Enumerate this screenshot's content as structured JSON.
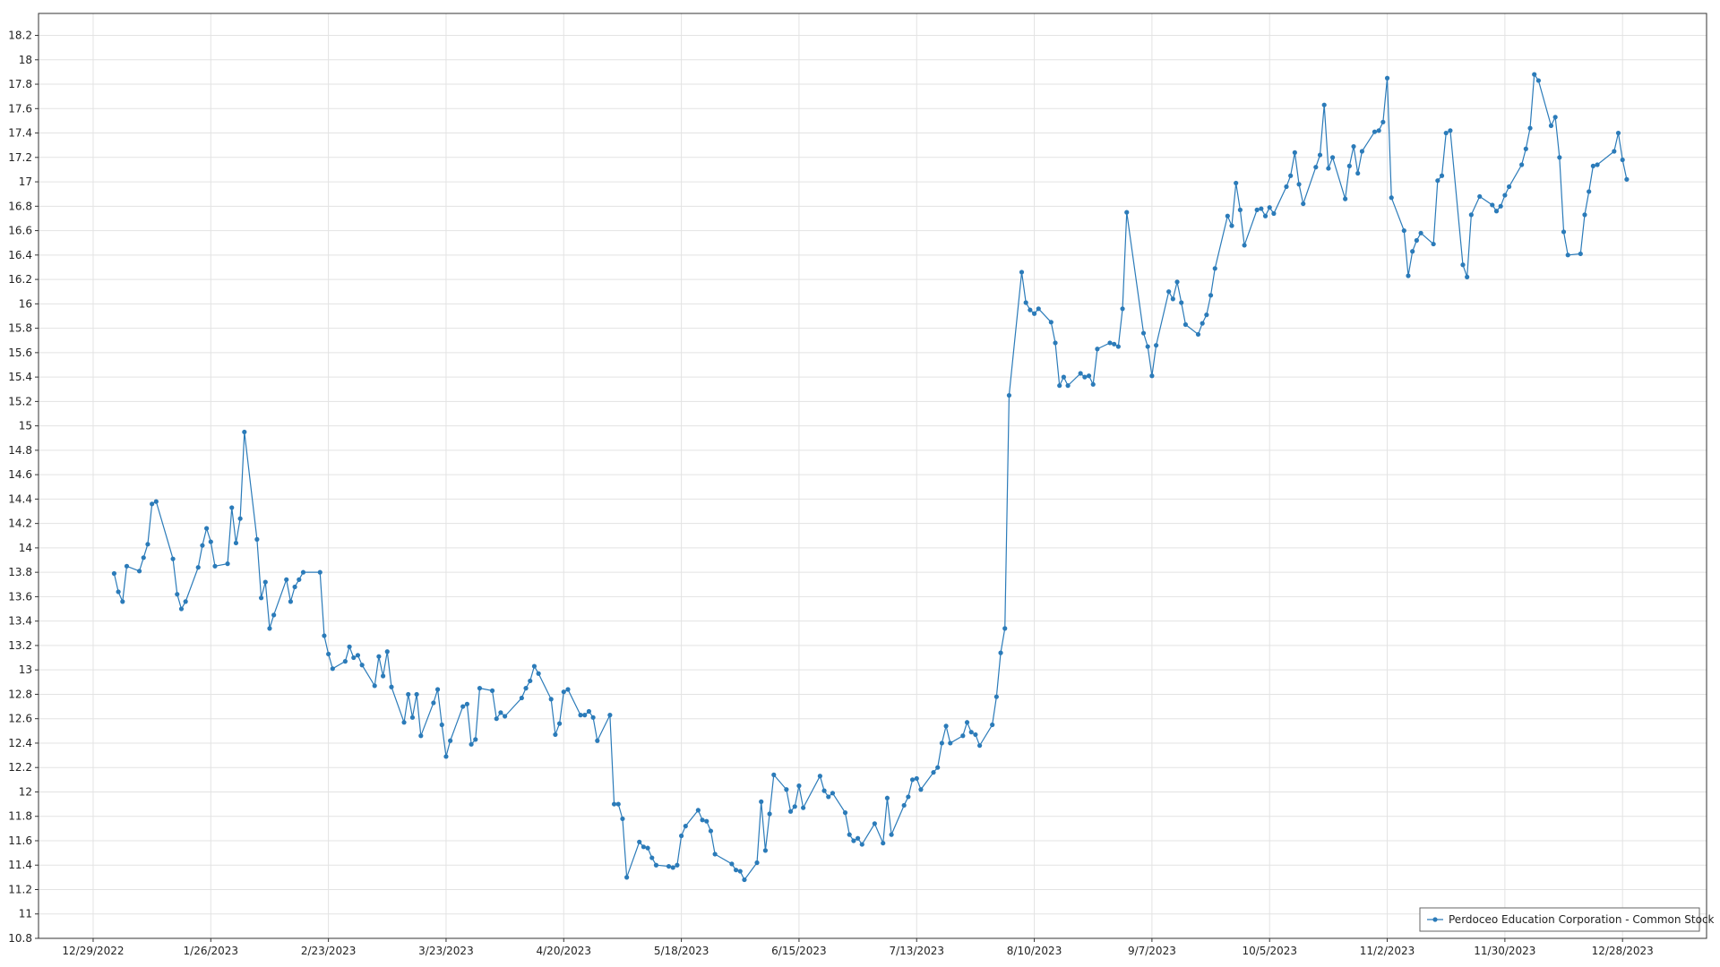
{
  "chart_data": {
    "type": "line",
    "x": [
      "1/3/2023",
      "1/4/2023",
      "1/5/2023",
      "1/6/2023",
      "1/9/2023",
      "1/10/2023",
      "1/11/2023",
      "1/12/2023",
      "1/13/2023",
      "1/17/2023",
      "1/18/2023",
      "1/19/2023",
      "1/20/2023",
      "1/23/2023",
      "1/24/2023",
      "1/25/2023",
      "1/26/2023",
      "1/27/2023",
      "1/30/2023",
      "1/31/2023",
      "2/1/2023",
      "2/2/2023",
      "2/3/2023",
      "2/6/2023",
      "2/7/2023",
      "2/8/2023",
      "2/9/2023",
      "2/10/2023",
      "2/13/2023",
      "2/14/2023",
      "2/15/2023",
      "2/16/2023",
      "2/17/2023",
      "2/21/2023",
      "2/22/2023",
      "2/23/2023",
      "2/24/2023",
      "2/27/2023",
      "2/28/2023",
      "3/1/2023",
      "3/2/2023",
      "3/3/2023",
      "3/6/2023",
      "3/7/2023",
      "3/8/2023",
      "3/9/2023",
      "3/10/2023",
      "3/13/2023",
      "3/14/2023",
      "3/15/2023",
      "3/16/2023",
      "3/17/2023",
      "3/20/2023",
      "3/21/2023",
      "3/22/2023",
      "3/23/2023",
      "3/24/2023",
      "3/27/2023",
      "3/28/2023",
      "3/29/2023",
      "3/30/2023",
      "3/31/2023",
      "4/3/2023",
      "4/4/2023",
      "4/5/2023",
      "4/6/2023",
      "4/10/2023",
      "4/11/2023",
      "4/12/2023",
      "4/13/2023",
      "4/14/2023",
      "4/17/2023",
      "4/18/2023",
      "4/19/2023",
      "4/20/2023",
      "4/21/2023",
      "4/24/2023",
      "4/25/2023",
      "4/26/2023",
      "4/27/2023",
      "4/28/2023",
      "5/1/2023",
      "5/2/2023",
      "5/3/2023",
      "5/4/2023",
      "5/5/2023",
      "5/8/2023",
      "5/9/2023",
      "5/10/2023",
      "5/11/2023",
      "5/12/2023",
      "5/15/2023",
      "5/16/2023",
      "5/17/2023",
      "5/18/2023",
      "5/19/2023",
      "5/22/2023",
      "5/23/2023",
      "5/24/2023",
      "5/25/2023",
      "5/26/2023",
      "5/30/2023",
      "5/31/2023",
      "6/1/2023",
      "6/2/2023",
      "6/5/2023",
      "6/6/2023",
      "6/7/2023",
      "6/8/2023",
      "6/9/2023",
      "6/12/2023",
      "6/13/2023",
      "6/14/2023",
      "6/15/2023",
      "6/16/2023",
      "6/20/2023",
      "6/21/2023",
      "6/22/2023",
      "6/23/2023",
      "6/26/2023",
      "6/27/2023",
      "6/28/2023",
      "6/29/2023",
      "6/30/2023",
      "7/3/2023",
      "7/5/2023",
      "7/6/2023",
      "7/7/2023",
      "7/10/2023",
      "7/11/2023",
      "7/12/2023",
      "7/13/2023",
      "7/14/2023",
      "7/17/2023",
      "7/18/2023",
      "7/19/2023",
      "7/20/2023",
      "7/21/2023",
      "7/24/2023",
      "7/25/2023",
      "7/26/2023",
      "7/27/2023",
      "7/28/2023",
      "7/31/2023",
      "8/1/2023",
      "8/2/2023",
      "8/3/2023",
      "8/4/2023",
      "8/7/2023",
      "8/8/2023",
      "8/9/2023",
      "8/10/2023",
      "8/11/2023",
      "8/14/2023",
      "8/15/2023",
      "8/16/2023",
      "8/17/2023",
      "8/18/2023",
      "8/21/2023",
      "8/22/2023",
      "8/23/2023",
      "8/24/2023",
      "8/25/2023",
      "8/28/2023",
      "8/29/2023",
      "8/30/2023",
      "8/31/2023",
      "9/1/2023",
      "9/5/2023",
      "9/6/2023",
      "9/7/2023",
      "9/8/2023",
      "9/11/2023",
      "9/12/2023",
      "9/13/2023",
      "9/14/2023",
      "9/15/2023",
      "9/18/2023",
      "9/19/2023",
      "9/20/2023",
      "9/21/2023",
      "9/22/2023",
      "9/25/2023",
      "9/26/2023",
      "9/27/2023",
      "9/28/2023",
      "9/29/2023",
      "10/2/2023",
      "10/3/2023",
      "10/4/2023",
      "10/5/2023",
      "10/6/2023",
      "10/9/2023",
      "10/10/2023",
      "10/11/2023",
      "10/12/2023",
      "10/13/2023",
      "10/16/2023",
      "10/17/2023",
      "10/18/2023",
      "10/19/2023",
      "10/20/2023",
      "10/23/2023",
      "10/24/2023",
      "10/25/2023",
      "10/26/2023",
      "10/27/2023",
      "10/30/2023",
      "10/31/2023",
      "11/1/2023",
      "11/2/2023",
      "11/3/2023",
      "11/6/2023",
      "11/7/2023",
      "11/8/2023",
      "11/9/2023",
      "11/10/2023",
      "11/13/2023",
      "11/14/2023",
      "11/15/2023",
      "11/16/2023",
      "11/17/2023",
      "11/20/2023",
      "11/21/2023",
      "11/22/2023",
      "11/24/2023",
      "11/27/2023",
      "11/28/2023",
      "11/29/2023",
      "11/30/2023",
      "12/1/2023",
      "12/4/2023",
      "12/5/2023",
      "12/6/2023",
      "12/7/2023",
      "12/8/2023",
      "12/11/2023",
      "12/12/2023",
      "12/13/2023",
      "12/14/2023",
      "12/15/2023",
      "12/18/2023",
      "12/19/2023",
      "12/20/2023",
      "12/21/2023",
      "12/22/2023",
      "12/26/2023",
      "12/27/2023",
      "12/28/2023",
      "12/29/2023"
    ],
    "series": [
      {
        "name": "Perdoceo Education Corporation - Common Stock",
        "color": "#2b7bb9",
        "values": [
          13.79,
          13.64,
          13.56,
          13.85,
          13.81,
          13.92,
          14.03,
          14.36,
          14.38,
          13.91,
          13.62,
          13.5,
          13.56,
          13.84,
          14.02,
          14.16,
          14.05,
          13.85,
          13.87,
          14.33,
          14.04,
          14.24,
          14.95,
          14.07,
          13.59,
          13.72,
          13.34,
          13.45,
          13.74,
          13.56,
          13.68,
          13.74,
          13.8,
          13.8,
          13.28,
          13.13,
          13.01,
          13.07,
          13.19,
          13.1,
          13.12,
          13.04,
          12.87,
          13.11,
          12.95,
          13.15,
          12.86,
          12.57,
          12.8,
          12.61,
          12.8,
          12.46,
          12.73,
          12.84,
          12.55,
          12.29,
          12.42,
          12.7,
          12.72,
          12.39,
          12.43,
          12.85,
          12.83,
          12.6,
          12.65,
          12.62,
          12.77,
          12.85,
          12.91,
          13.03,
          12.97,
          12.76,
          12.47,
          12.56,
          12.82,
          12.84,
          12.63,
          12.63,
          12.66,
          12.61,
          12.42,
          12.63,
          11.9,
          11.9,
          11.78,
          11.3,
          11.59,
          11.55,
          11.54,
          11.46,
          11.4,
          11.39,
          11.38,
          11.4,
          11.64,
          11.72,
          11.85,
          11.77,
          11.76,
          11.68,
          11.49,
          11.41,
          11.36,
          11.35,
          11.28,
          11.42,
          11.92,
          11.52,
          11.82,
          12.14,
          12.02,
          11.84,
          11.88,
          12.05,
          11.87,
          12.13,
          12.01,
          11.96,
          11.99,
          11.83,
          11.65,
          11.6,
          11.62,
          11.57,
          11.74,
          11.58,
          11.95,
          11.65,
          11.89,
          11.96,
          12.1,
          12.11,
          12.02,
          12.16,
          12.2,
          12.4,
          12.54,
          12.4,
          12.46,
          12.57,
          12.49,
          12.47,
          12.38,
          12.55,
          12.78,
          13.14,
          13.34,
          15.25,
          16.26,
          16.01,
          15.95,
          15.92,
          15.96,
          15.85,
          15.68,
          15.33,
          15.4,
          15.33,
          15.43,
          15.4,
          15.41,
          15.34,
          15.63,
          15.68,
          15.67,
          15.65,
          15.96,
          16.75,
          15.76,
          15.65,
          15.41,
          15.66,
          16.1,
          16.04,
          16.18,
          16.01,
          15.83,
          15.75,
          15.84,
          15.91,
          16.07,
          16.29,
          16.72,
          16.64,
          16.99,
          16.77,
          16.48,
          16.77,
          16.78,
          16.72,
          16.79,
          16.74,
          16.96,
          17.05,
          17.24,
          16.98,
          16.82,
          17.12,
          17.22,
          17.63,
          17.11,
          17.2,
          16.86,
          17.13,
          17.29,
          17.07,
          17.25,
          17.41,
          17.42,
          17.49,
          17.85,
          16.87,
          16.6,
          16.23,
          16.43,
          16.52,
          16.58,
          16.49,
          17.01,
          17.05,
          17.4,
          17.42,
          16.32,
          16.22,
          16.73,
          16.88,
          16.81,
          16.76,
          16.8,
          16.89,
          16.96,
          17.14,
          17.27,
          17.44,
          17.88,
          17.83,
          17.46,
          17.53,
          17.2,
          16.59,
          16.4,
          16.41,
          16.73,
          16.92,
          17.13,
          17.14,
          17.25,
          17.4,
          17.18,
          17.02
        ]
      }
    ],
    "xlim": [
      "12/16/2022",
      "1/17/2024"
    ],
    "xticks": [
      "12/29/2022",
      "1/26/2023",
      "2/23/2023",
      "3/23/2023",
      "4/20/2023",
      "5/18/2023",
      "6/15/2023",
      "7/13/2023",
      "8/10/2023",
      "9/7/2023",
      "10/5/2023",
      "11/2/2023",
      "11/30/2023",
      "12/28/2023"
    ],
    "ylim": [
      10.8,
      18.38
    ],
    "yticks": [
      10.8,
      11,
      11.2,
      11.4,
      11.6,
      11.8,
      12,
      12.2,
      12.4,
      12.6,
      12.8,
      13,
      13.2,
      13.4,
      13.6,
      13.8,
      14,
      14.2,
      14.4,
      14.6,
      14.8,
      15,
      15.2,
      15.4,
      15.6,
      15.8,
      16,
      16.2,
      16.4,
      16.6,
      16.8,
      17,
      17.2,
      17.4,
      17.6,
      17.8,
      18,
      18.2
    ],
    "grid": true,
    "markers": true,
    "legend": "lower right"
  }
}
